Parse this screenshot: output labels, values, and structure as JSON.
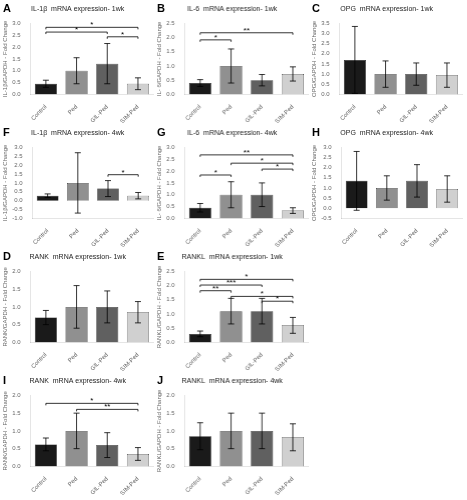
{
  "chart_data": [
    {
      "type": "bar",
      "panel_label": "A",
      "title": "IL-1β  mRNA expression- 1wk",
      "ylabel": "IL-1β/GAPDH - Fold Change",
      "categories": [
        "Control",
        "Ped",
        "GIL-Ped",
        "SIM-Ped"
      ],
      "values": [
        0.45,
        1.0,
        1.3,
        0.45
      ],
      "errors": [
        0.15,
        0.55,
        0.85,
        0.25
      ],
      "colors": [
        "#1a1a1a",
        "#909090",
        "#606060",
        "#d0d0d0"
      ],
      "ylim": [
        0,
        3.0
      ],
      "yticks": [
        {
          "value": 0,
          "label": "0.0"
        },
        0.5,
        {
          "value": 1,
          "label": "1.0"
        },
        1.5,
        {
          "value": 2,
          "label": "2.0"
        },
        2.5,
        {
          "value": 3,
          "label": "3.0"
        }
      ],
      "grid": false,
      "annotations": [
        {
          "from": "Control",
          "to": "GIL-Ped",
          "y": 2.55,
          "label": "*"
        },
        {
          "from": "Control",
          "to": "SIM-Ped",
          "y": 2.75,
          "label": "*"
        },
        {
          "from": "GIL-Ped",
          "to": "SIM-Ped",
          "y": 2.35,
          "label": "*"
        }
      ]
    },
    {
      "type": "bar",
      "panel_label": "B",
      "title": "IL-6  mRNA expression- 1wk",
      "ylabel": "IL- 6/GAPDH - Fold Change",
      "categories": [
        "Control",
        "Ped",
        "GIL-Ped",
        "SIM-Ped"
      ],
      "values": [
        0.4,
        1.0,
        0.5,
        0.72
      ],
      "errors": [
        0.12,
        0.6,
        0.2,
        0.25
      ],
      "colors": [
        "#1a1a1a",
        "#909090",
        "#606060",
        "#d0d0d0"
      ],
      "ylim": [
        0,
        2.5
      ],
      "yticks": [
        {
          "value": 0,
          "label": "0.0"
        },
        0.5,
        {
          "value": 1,
          "label": "1.0"
        },
        1.5,
        {
          "value": 2,
          "label": "2.0"
        },
        2.5
      ],
      "grid": false,
      "annotations": [
        {
          "from": "Control",
          "to": "Ped",
          "y": 1.85,
          "label": "*"
        },
        {
          "from": "Control",
          "to": "SIM-Ped",
          "y": 2.1,
          "label": "**"
        }
      ]
    },
    {
      "type": "bar",
      "panel_label": "C",
      "title": "OPG  mRNA expression- 1wk",
      "ylabel": "OPG/GAPDH - Fold Change",
      "categories": [
        "Control",
        "Ped",
        "GIL-Ped",
        "SIM-Ped"
      ],
      "values": [
        1.7,
        1.0,
        1.0,
        0.95
      ],
      "errors": [
        1.65,
        0.65,
        0.55,
        0.6
      ],
      "colors": [
        "#1a1a1a",
        "#909090",
        "#606060",
        "#d0d0d0"
      ],
      "ylim": [
        0,
        3.5
      ],
      "yticks": [
        {
          "value": 0,
          "label": "0.0"
        },
        0.5,
        {
          "value": 1,
          "label": "1.0"
        },
        1.5,
        {
          "value": 2,
          "label": "2.0"
        },
        2.5,
        {
          "value": 3,
          "label": "3.0"
        },
        3.5
      ],
      "grid": false,
      "annotations": []
    },
    {
      "type": "bar",
      "panel_label": "F",
      "title": "IL-1β  mRNA expression- 4wk",
      "ylabel": "IL-1β/GAPDH - Fold Change",
      "categories": [
        "Control",
        "Ped",
        "GIL-Ped",
        "SIM-Ped"
      ],
      "values": [
        0.28,
        1.0,
        0.68,
        0.28
      ],
      "errors": [
        0.1,
        1.7,
        0.45,
        0.18
      ],
      "colors": [
        "#1a1a1a",
        "#909090",
        "#606060",
        "#d0d0d0"
      ],
      "ylim": [
        -1.0,
        3.0
      ],
      "yticks": [
        {
          "value": -1,
          "label": "-1.0"
        },
        -0.5,
        {
          "value": 0,
          "label": "0.0"
        },
        0.5,
        {
          "value": 1,
          "label": "1.0"
        },
        1.5,
        {
          "value": 2,
          "label": "2.0"
        },
        2.5,
        {
          "value": 3,
          "label": "3.0"
        }
      ],
      "grid": false,
      "annotations": [
        {
          "from": "GIL-Ped",
          "to": "SIM-Ped",
          "y": 1.35,
          "label": "*"
        }
      ]
    },
    {
      "type": "bar",
      "panel_label": "G",
      "title": "IL-6  mRNA expression- 4wk",
      "ylabel": "IL- 6/GAPDH - Fold Change",
      "categories": [
        "Control",
        "Ped",
        "GIL-Ped",
        "SIM-Ped"
      ],
      "values": [
        0.45,
        1.0,
        1.0,
        0.33
      ],
      "errors": [
        0.18,
        0.55,
        0.5,
        0.12
      ],
      "colors": [
        "#1a1a1a",
        "#909090",
        "#606060",
        "#d0d0d0"
      ],
      "ylim": [
        0,
        3.0
      ],
      "yticks": [
        {
          "value": 0,
          "label": "0.0"
        },
        0.5,
        {
          "value": 1,
          "label": "1.0"
        },
        1.5,
        {
          "value": 2,
          "label": "2.0"
        },
        2.5,
        {
          "value": 3,
          "label": "3.0"
        }
      ],
      "grid": false,
      "annotations": [
        {
          "from": "Control",
          "to": "Ped",
          "y": 1.75,
          "label": "*"
        },
        {
          "from": "Control",
          "to": "SIM-Ped",
          "y": 2.6,
          "label": "**"
        },
        {
          "from": "Ped",
          "to": "SIM-Ped",
          "y": 2.25,
          "label": "*"
        },
        {
          "from": "GIL-Ped",
          "to": "SIM-Ped",
          "y": 2.0,
          "label": "*"
        }
      ]
    },
    {
      "type": "bar",
      "panel_label": "H",
      "title": "OPG  mRNA expression- 4wk",
      "ylabel": "OPG/GAPDH - Fold Change",
      "categories": [
        "Control",
        "Ped",
        "GIL-Ped",
        "SIM-Ped"
      ],
      "values": [
        1.35,
        1.0,
        1.35,
        0.95
      ],
      "errors": [
        1.45,
        0.6,
        0.8,
        0.65
      ],
      "colors": [
        "#1a1a1a",
        "#909090",
        "#606060",
        "#d0d0d0"
      ],
      "ylim": [
        -0.5,
        3.0
      ],
      "yticks": [
        -0.5,
        {
          "value": 0,
          "label": "0.0"
        },
        0.5,
        {
          "value": 1,
          "label": "1.0"
        },
        1.5,
        {
          "value": 2,
          "label": "2.0"
        },
        2.5,
        {
          "value": 3,
          "label": "3.0"
        }
      ],
      "grid": false,
      "annotations": []
    },
    {
      "type": "bar",
      "panel_label": "D",
      "title": "RANK  mRNA expression- 1wk",
      "ylabel": "RANK/GAPDH - Fold Change",
      "categories": [
        "Control",
        "Ped",
        "GIL-Ped",
        "SIM-Ped"
      ],
      "values": [
        0.7,
        1.0,
        1.0,
        0.85
      ],
      "errors": [
        0.2,
        0.6,
        0.45,
        0.3
      ],
      "colors": [
        "#1a1a1a",
        "#909090",
        "#606060",
        "#d0d0d0"
      ],
      "ylim": [
        0,
        2.0
      ],
      "yticks": [
        {
          "value": 0,
          "label": "0.0"
        },
        0.5,
        {
          "value": 1,
          "label": "1.0"
        },
        1.5,
        {
          "value": 2,
          "label": "2.0"
        }
      ],
      "grid": false,
      "annotations": []
    },
    {
      "type": "bar",
      "panel_label": "E",
      "title": "RANKL  mRNA expression- 1wk",
      "ylabel": "RANKL/GAPDH - Fold Change",
      "categories": [
        "Control",
        "Ped",
        "GIL-Ped",
        "SIM-Ped"
      ],
      "values": [
        0.3,
        1.1,
        1.1,
        0.6
      ],
      "errors": [
        0.1,
        0.45,
        0.45,
        0.28
      ],
      "colors": [
        "#1a1a1a",
        "#909090",
        "#606060",
        "#d0d0d0"
      ],
      "ylim": [
        0,
        2.5
      ],
      "yticks": [
        {
          "value": 0,
          "label": "0.0"
        },
        0.5,
        {
          "value": 1,
          "label": "1.0"
        },
        1.5,
        {
          "value": 2,
          "label": "2.0"
        },
        2.5
      ],
      "grid": false,
      "annotations": [
        {
          "from": "Control",
          "to": "Ped",
          "y": 1.75,
          "label": "**"
        },
        {
          "from": "Control",
          "to": "GIL-Ped",
          "y": 1.95,
          "label": "***"
        },
        {
          "from": "Control",
          "to": "SIM-Ped",
          "y": 2.15,
          "label": "*"
        },
        {
          "from": "Ped",
          "to": "SIM-Ped",
          "y": 1.55,
          "label": "*"
        },
        {
          "from": "GIL-Ped",
          "to": "SIM-Ped",
          "y": 1.38,
          "label": "*"
        }
      ]
    },
    {
      "type": "bar",
      "panel_label": "I",
      "title": "RANK  mRNA expression- 4wk",
      "ylabel": "RANK/GAPDH - Fold Change",
      "categories": [
        "Control",
        "Ped",
        "GIL-Ped",
        "SIM-Ped"
      ],
      "values": [
        0.62,
        1.0,
        0.6,
        0.35
      ],
      "errors": [
        0.18,
        0.5,
        0.35,
        0.18
      ],
      "colors": [
        "#1a1a1a",
        "#909090",
        "#606060",
        "#d0d0d0"
      ],
      "ylim": [
        0,
        2.0
      ],
      "yticks": [
        {
          "value": 0,
          "label": "0.0"
        },
        0.5,
        {
          "value": 1,
          "label": "1.0"
        },
        1.5,
        {
          "value": 2,
          "label": "2.0"
        }
      ],
      "grid": false,
      "annotations": [
        {
          "from": "Control",
          "to": "SIM-Ped",
          "y": 1.72,
          "label": "*"
        },
        {
          "from": "Ped",
          "to": "SIM-Ped",
          "y": 1.55,
          "label": "**"
        }
      ]
    },
    {
      "type": "bar",
      "panel_label": "J",
      "title": "RANKL  mRNA expression- 4wk",
      "ylabel": "RANKL/GAPDH - Fold Change",
      "categories": [
        "Control",
        "Ped",
        "GIL-Ped",
        "SIM-Ped"
      ],
      "values": [
        0.85,
        1.0,
        1.0,
        0.82
      ],
      "errors": [
        0.38,
        0.5,
        0.5,
        0.38
      ],
      "colors": [
        "#1a1a1a",
        "#909090",
        "#606060",
        "#d0d0d0"
      ],
      "ylim": [
        0,
        2.0
      ],
      "yticks": [
        {
          "value": 0,
          "label": "0.0"
        },
        0.5,
        {
          "value": 1,
          "label": "1.0"
        },
        1.5,
        {
          "value": 2,
          "label": "2.0"
        }
      ],
      "grid": false,
      "annotations": []
    }
  ]
}
